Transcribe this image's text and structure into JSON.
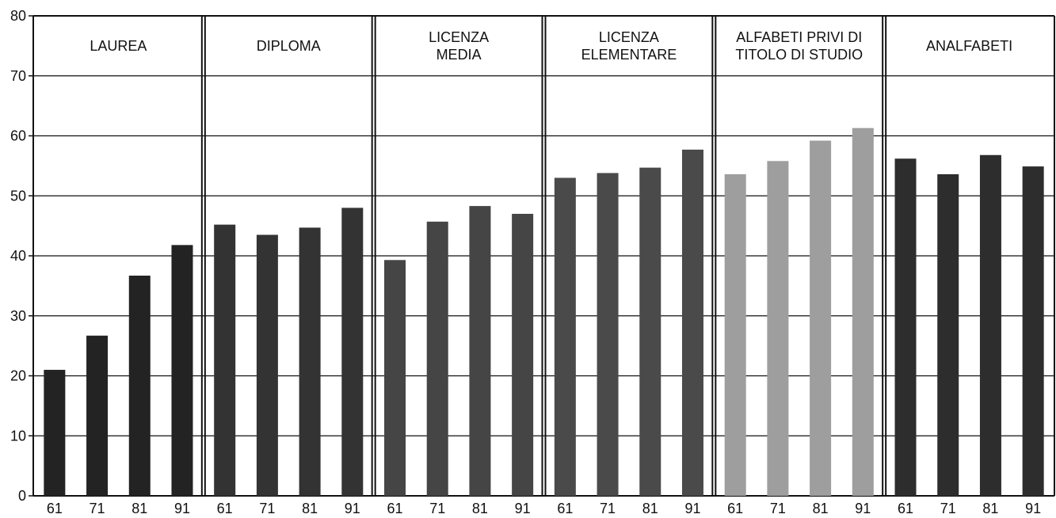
{
  "chart_data": {
    "type": "bar",
    "ylim": [
      0,
      80
    ],
    "yticks": [
      0,
      10,
      20,
      30,
      40,
      50,
      60,
      70,
      80
    ],
    "grid": true,
    "categories": [
      "61",
      "71",
      "81",
      "91"
    ],
    "panels": [
      {
        "title": [
          "LAUREA"
        ],
        "color": "#232323",
        "values": [
          21,
          26.7,
          36.7,
          41.8
        ]
      },
      {
        "title": [
          "DIPLOMA"
        ],
        "color": "#333333",
        "values": [
          45.2,
          43.5,
          44.7,
          48.0
        ]
      },
      {
        "title": [
          "LICENZA",
          "MEDIA"
        ],
        "color": "#454545",
        "values": [
          39.3,
          45.7,
          48.3,
          47.0
        ]
      },
      {
        "title": [
          "LICENZA",
          "ELEMENTARE"
        ],
        "color": "#4a4a4a",
        "values": [
          53.0,
          53.8,
          54.7,
          57.7
        ]
      },
      {
        "title": [
          "ALFABETI PRIVI DI",
          "TITOLO DI STUDIO"
        ],
        "color": "#9e9e9e",
        "values": [
          53.6,
          55.8,
          59.2,
          61.3
        ]
      },
      {
        "title": [
          "ANALFABETI"
        ],
        "color": "#2d2d2d",
        "values": [
          56.2,
          53.6,
          56.8,
          54.9
        ]
      }
    ]
  }
}
